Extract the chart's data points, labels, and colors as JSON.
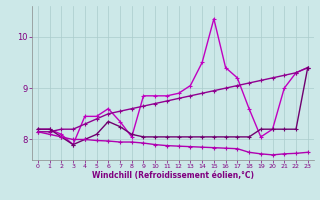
{
  "bg_color": "#cce8e8",
  "grid_color": "#aacccc",
  "xlabel": "Windchill (Refroidissement éolien,°C)",
  "xlim": [
    -0.5,
    23.5
  ],
  "ylim": [
    7.6,
    10.6
  ],
  "yticks": [
    8,
    9,
    10
  ],
  "xticks": [
    0,
    1,
    2,
    3,
    4,
    5,
    6,
    7,
    8,
    9,
    10,
    11,
    12,
    13,
    14,
    15,
    16,
    17,
    18,
    19,
    20,
    21,
    22,
    23
  ],
  "series": [
    {
      "x": [
        0,
        1,
        2,
        3,
        4,
        5,
        6,
        7,
        8,
        9,
        10,
        11,
        12,
        13,
        14,
        15,
        16,
        17,
        18,
        19,
        20,
        21,
        22,
        23
      ],
      "y": [
        8.2,
        8.2,
        8.1,
        7.9,
        8.45,
        8.45,
        8.6,
        8.35,
        8.05,
        8.85,
        8.85,
        8.85,
        8.9,
        9.05,
        9.5,
        10.35,
        9.4,
        9.2,
        8.6,
        8.05,
        8.2,
        9.0,
        9.3,
        9.4
      ],
      "color": "#c000c0",
      "linewidth": 1.0,
      "marker": "+"
    },
    {
      "x": [
        0,
        1,
        2,
        3,
        4,
        5,
        6,
        7,
        8,
        9,
        10,
        11,
        12,
        13,
        14,
        15,
        16,
        17,
        18,
        19,
        20,
        21,
        22,
        23
      ],
      "y": [
        8.15,
        8.15,
        8.2,
        8.2,
        8.3,
        8.4,
        8.5,
        8.55,
        8.6,
        8.65,
        8.7,
        8.75,
        8.8,
        8.85,
        8.9,
        8.95,
        9.0,
        9.05,
        9.1,
        9.15,
        9.2,
        9.25,
        9.3,
        9.4
      ],
      "color": "#900090",
      "linewidth": 1.0,
      "marker": "+"
    },
    {
      "x": [
        0,
        1,
        2,
        3,
        4,
        5,
        6,
        7,
        8,
        9,
        10,
        11,
        12,
        13,
        14,
        15,
        16,
        17,
        18,
        19,
        20,
        21,
        22,
        23
      ],
      "y": [
        8.2,
        8.2,
        8.05,
        7.9,
        8.0,
        8.1,
        8.35,
        8.25,
        8.1,
        8.05,
        8.05,
        8.05,
        8.05,
        8.05,
        8.05,
        8.05,
        8.05,
        8.05,
        8.05,
        8.2,
        8.2,
        8.2,
        8.2,
        9.4
      ],
      "color": "#700070",
      "linewidth": 1.0,
      "marker": "+"
    },
    {
      "x": [
        0,
        1,
        2,
        3,
        4,
        5,
        6,
        7,
        8,
        9,
        10,
        11,
        12,
        13,
        14,
        15,
        16,
        17,
        18,
        19,
        20,
        21,
        22,
        23
      ],
      "y": [
        8.15,
        8.1,
        8.05,
        8.0,
        8.0,
        7.98,
        7.97,
        7.95,
        7.95,
        7.93,
        7.9,
        7.88,
        7.87,
        7.86,
        7.85,
        7.84,
        7.83,
        7.82,
        7.75,
        7.72,
        7.7,
        7.72,
        7.73,
        7.75
      ],
      "color": "#b000b0",
      "linewidth": 1.0,
      "marker": "+"
    }
  ]
}
